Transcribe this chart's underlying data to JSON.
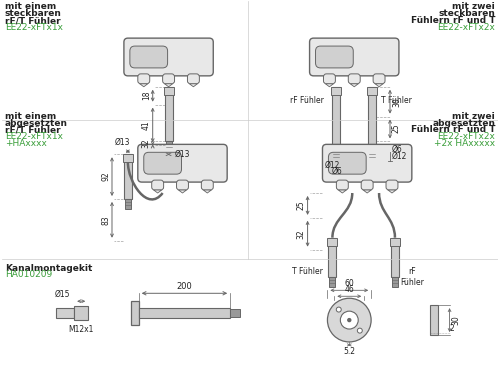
{
  "bg_color": "#ffffff",
  "line_color": "#666666",
  "green_color": "#3a9e3a",
  "text_color": "#222222",
  "box_fill": "#e8e8e8",
  "box_inner_fill": "#d0d0d0",
  "probe_fill": "#cccccc",
  "probe_tip_fill": "#999999",
  "cable_color": "#888888",
  "title_texts": {
    "top_left": [
      "mit einem",
      "steckbaren",
      "rF/T Fühler"
    ],
    "top_left_green": "EE22-xFTx1x",
    "top_right": [
      "mit zwei",
      "steckbaren",
      "Fühlern rF und T"
    ],
    "top_right_green": "EE22-xFTx2x",
    "mid_left": [
      "mit einem",
      "abgesetzten",
      "rF/T Fühler"
    ],
    "mid_left_green": [
      "EE22-xFTx1x",
      "+HAxxxx"
    ],
    "mid_right": [
      "mit zwei",
      "abgesetzten",
      "Fühlern rF und T"
    ],
    "mid_right_green": [
      "EE22-xFTx2x",
      "+2x HAxxxxx"
    ],
    "bot_left": "Kanalmontagekit",
    "bot_left_green": "HA010209"
  }
}
